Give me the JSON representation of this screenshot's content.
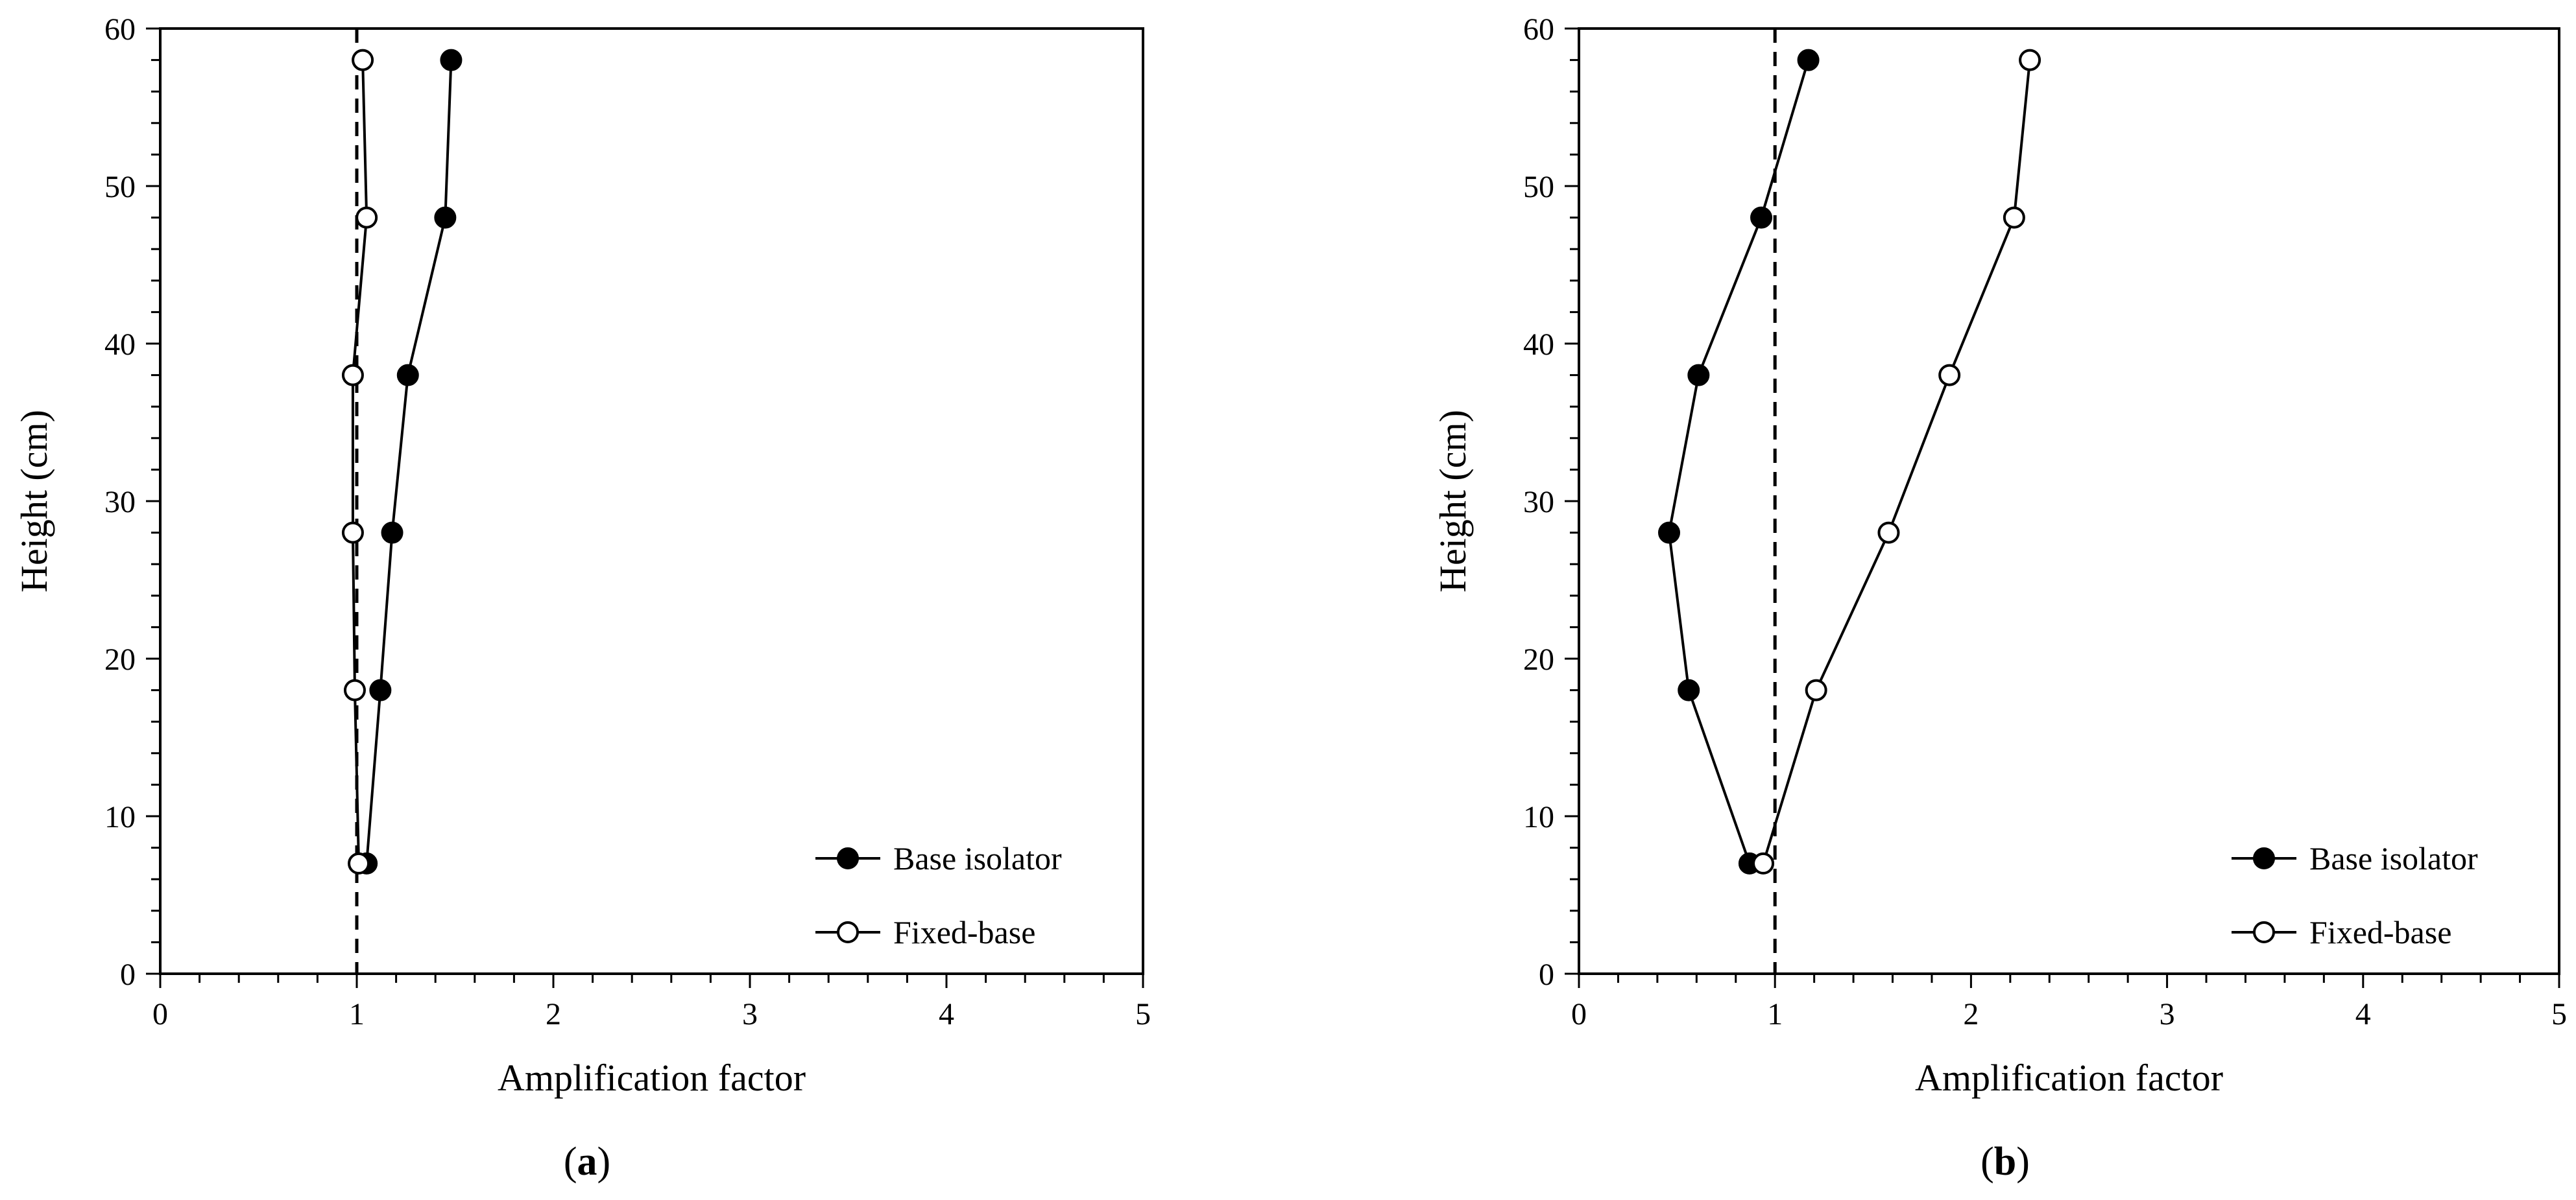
{
  "chart_data": [
    {
      "type": "scatter",
      "panel": "a",
      "caption_letter": "a",
      "xlabel": "Amplification factor",
      "ylabel": "Height (cm)",
      "xlim": [
        0,
        5
      ],
      "ylim": [
        0,
        60
      ],
      "xticks": [
        0,
        1,
        2,
        3,
        4,
        5
      ],
      "yticks": [
        0,
        10,
        20,
        30,
        40,
        50,
        60
      ],
      "grid": false,
      "legend_position": "bottom-right",
      "reference_line": {
        "x": 1,
        "style": "dashed"
      },
      "series": [
        {
          "name": "Base isolator",
          "marker": "filled-circle",
          "points": [
            {
              "x": 1.05,
              "y": 7
            },
            {
              "x": 1.12,
              "y": 18
            },
            {
              "x": 1.18,
              "y": 28
            },
            {
              "x": 1.26,
              "y": 38
            },
            {
              "x": 1.45,
              "y": 48
            },
            {
              "x": 1.48,
              "y": 58
            }
          ]
        },
        {
          "name": "Fixed-base",
          "marker": "open-circle",
          "points": [
            {
              "x": 1.01,
              "y": 7
            },
            {
              "x": 0.99,
              "y": 18
            },
            {
              "x": 0.98,
              "y": 28
            },
            {
              "x": 0.98,
              "y": 38
            },
            {
              "x": 1.05,
              "y": 48
            },
            {
              "x": 1.03,
              "y": 58
            }
          ]
        }
      ]
    },
    {
      "type": "scatter",
      "panel": "b",
      "caption_letter": "b",
      "xlabel": "Amplification factor",
      "ylabel": "Height (cm)",
      "xlim": [
        0,
        5
      ],
      "ylim": [
        0,
        60
      ],
      "xticks": [
        0,
        1,
        2,
        3,
        4,
        5
      ],
      "yticks": [
        0,
        10,
        20,
        30,
        40,
        50,
        60
      ],
      "grid": false,
      "legend_position": "bottom-right",
      "reference_line": {
        "x": 1,
        "style": "dashed"
      },
      "series": [
        {
          "name": "Base isolator",
          "marker": "filled-circle",
          "points": [
            {
              "x": 0.87,
              "y": 7
            },
            {
              "x": 0.56,
              "y": 18
            },
            {
              "x": 0.46,
              "y": 28
            },
            {
              "x": 0.61,
              "y": 38
            },
            {
              "x": 0.93,
              "y": 48
            },
            {
              "x": 1.17,
              "y": 58
            }
          ]
        },
        {
          "name": "Fixed-base",
          "marker": "open-circle",
          "points": [
            {
              "x": 0.94,
              "y": 7
            },
            {
              "x": 1.21,
              "y": 18
            },
            {
              "x": 1.58,
              "y": 28
            },
            {
              "x": 1.89,
              "y": 38
            },
            {
              "x": 2.22,
              "y": 48
            },
            {
              "x": 2.3,
              "y": 58
            }
          ]
        }
      ]
    }
  ]
}
